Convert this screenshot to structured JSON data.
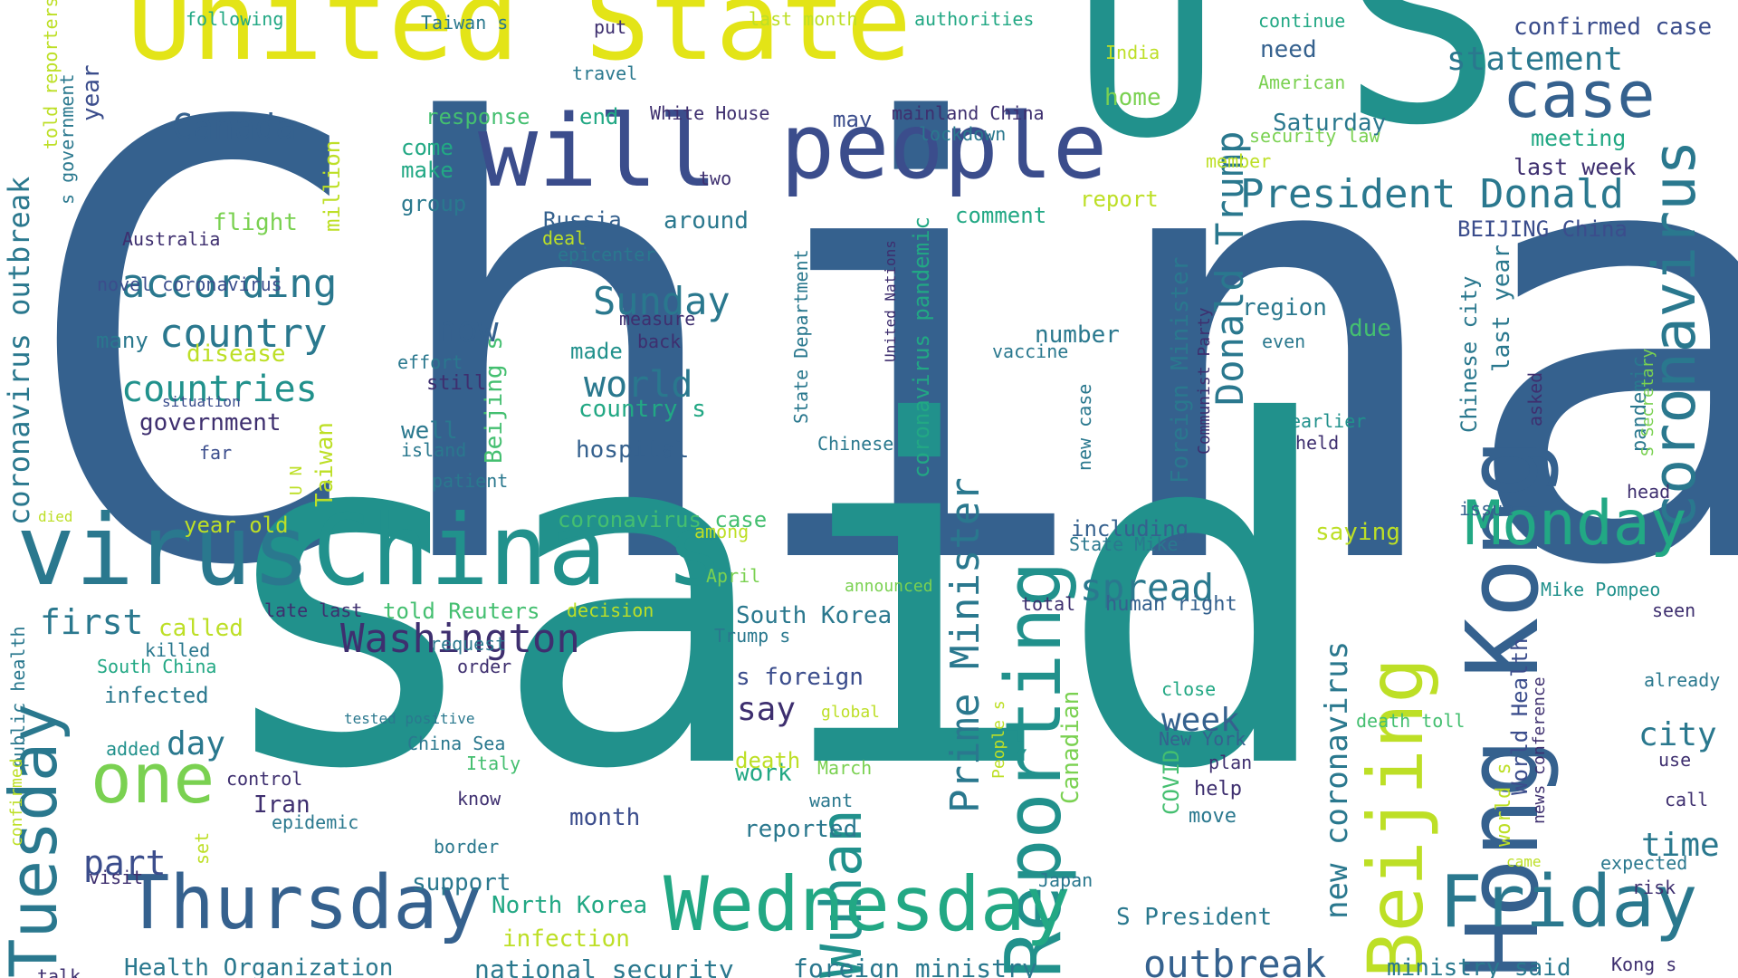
{
  "palette": {
    "navy": "#3e2f6f",
    "indigo": "#3b4d8c",
    "blue": "#35618e",
    "teal": "#2a788e",
    "green_teal": "#21918c",
    "sea": "#22a884",
    "green": "#44bf70",
    "lime": "#7ad151",
    "yellow_green": "#bddf26",
    "yellow": "#e3e417",
    "background": "#ffffff"
  },
  "words": [
    "China",
    "said",
    "U",
    "S",
    "United State",
    "Hong Kong",
    "virus",
    "China s",
    "will",
    "people",
    "Reporting",
    "Wuhan",
    "coronavirus",
    "case",
    "Beijing",
    "Monday",
    "Tuesday",
    "Thursday",
    "Wednesday",
    "Friday",
    "President Donald",
    "Donald Trump",
    "Prime Minister",
    "one",
    "outbreak",
    "Washington",
    "spread",
    "Sunday",
    "according",
    "country",
    "countries",
    "world",
    "statement",
    "Canada",
    "now",
    "new coronavirus",
    "first",
    "week",
    "say",
    "city",
    "time",
    "part",
    "day",
    "coronavirus outbreak",
    "Health Organization",
    "national security",
    "foreign ministry",
    "ministry said",
    "confirmed case",
    "meeting",
    "last week",
    "Saturday",
    "may",
    "mainland China",
    "White House",
    "last month",
    "authorities",
    "following",
    "Taiwan s",
    "put",
    "continue",
    "India",
    "need",
    "home",
    "American",
    "travel",
    "end",
    "response",
    "lockdown",
    "security law",
    "member",
    "come",
    "make",
    "group",
    "two",
    "comment",
    "report",
    "flight",
    "Australia",
    "novel coronavirus",
    "deal",
    "epicenter",
    "BEIJING China",
    "Russia",
    "around",
    "measure",
    "back",
    "disease",
    "many",
    "made",
    "country s",
    "effort",
    "still",
    "government",
    "situation",
    "well",
    "island",
    "hospital",
    "far",
    "patient",
    "region",
    "due",
    "even",
    "number",
    "vaccine",
    "new case",
    "including",
    "State Mike",
    "Chinese",
    "earlier",
    "held",
    "issue",
    "head",
    "saying",
    "year old",
    "died",
    "coronavirus case",
    "among",
    "April",
    "announced",
    "Mike Pompeo",
    "seen",
    "told Reuters",
    "decision",
    "total",
    "human right",
    "late last",
    "called",
    "killed",
    "South China",
    "South Korea",
    "Trump s",
    "s foreign",
    "infected",
    "request",
    "order",
    "tested positive",
    "global",
    "close",
    "New York",
    "plan",
    "help",
    "move",
    "China Sea",
    "Italy",
    "death toll",
    "already",
    "use",
    "call",
    "added",
    "control",
    "Iran",
    "epidemic",
    "know",
    "want",
    "work",
    "March",
    "death",
    "month",
    "reported",
    "border",
    "visit",
    "set",
    "support",
    "Japan",
    "expected",
    "risk",
    "came",
    "North Korea",
    "infection",
    "S President",
    "Kong s",
    "talk",
    "year",
    "told reporters",
    "s government",
    "public health",
    "confirmed",
    "million",
    "Taiwan",
    "U N",
    "Beijing s",
    "State Department",
    "United Nations",
    "coronavirus pandemic",
    "Foreign Minister",
    "Communist Party",
    "Canadian",
    "COVID",
    "People s",
    "Chinese city",
    "last year",
    "pandemic",
    "S Secretary",
    "asked",
    "World Health",
    "world s",
    "news conference"
  ]
}
